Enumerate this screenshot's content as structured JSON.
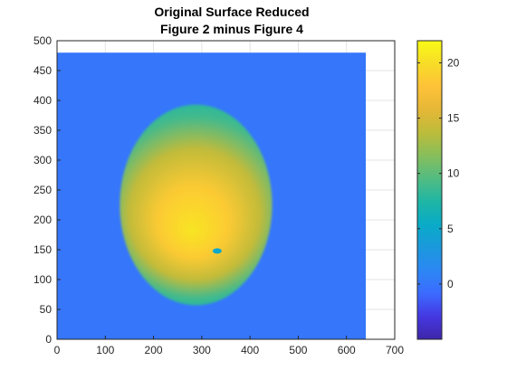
{
  "chart_data": {
    "type": "heatmap",
    "title": [
      "Original Surface Reduced",
      "Figure 2 minus Figure 4"
    ],
    "xlabel": "",
    "ylabel": "",
    "xlim": [
      0,
      700
    ],
    "ylim": [
      0,
      500
    ],
    "x_ticks": [
      "0",
      "100",
      "200",
      "300",
      "400",
      "500",
      "600",
      "700"
    ],
    "y_ticks": [
      "0",
      "50",
      "100",
      "150",
      "200",
      "250",
      "300",
      "350",
      "400",
      "450",
      "500"
    ],
    "grid": true,
    "image_extent": {
      "x": [
        0,
        640
      ],
      "y": [
        0,
        480
      ]
    },
    "background_value": 0,
    "surface": {
      "shape": "ellipse",
      "center": [
        288,
        225
      ],
      "radii": [
        158,
        168
      ],
      "edge_value": 8,
      "peak_value": 20,
      "peak_location": [
        280,
        180
      ]
    },
    "defect": {
      "location": [
        332,
        148
      ],
      "value": 5
    },
    "colorbar": {
      "colormap": "parula",
      "range": [
        -5,
        22
      ],
      "ticks": [
        "0",
        "5",
        "10",
        "15",
        "20"
      ],
      "colors": [
        "#3e26a8",
        "#4538e2",
        "#3c6bff",
        "#2c87f4",
        "#1b99dc",
        "#09abc7",
        "#1fb6a5",
        "#52bc82",
        "#87be5b",
        "#bcbc3a",
        "#e6b737",
        "#fec238",
        "#f7dc28",
        "#f9fb15"
      ]
    }
  }
}
